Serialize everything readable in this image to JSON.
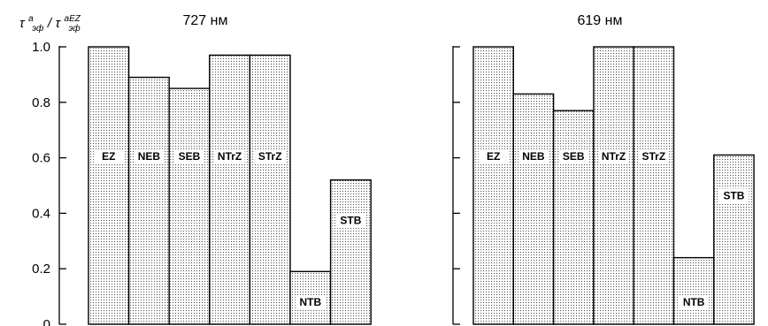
{
  "chart_data": [
    {
      "type": "bar",
      "title": "727 нм",
      "ylabel": {
        "base": "τ",
        "sup": "a",
        "sub": "эф",
        "sep": "/",
        "base2": "τ",
        "sup2": "aEZ",
        "sub2": "эф"
      },
      "categories": [
        "EZ",
        "NEB",
        "SEB",
        "NTrZ",
        "STrZ",
        "NTB",
        "STB"
      ],
      "values": [
        1.0,
        0.89,
        0.85,
        0.97,
        0.97,
        0.19,
        0.52
      ],
      "ylim": [
        0,
        1.0
      ],
      "yticks": [
        "0",
        "0.2",
        "0.4",
        "0.6",
        "0.8",
        "1.0"
      ],
      "grid": false,
      "legend": "none"
    },
    {
      "type": "bar",
      "title": "619 нм",
      "categories": [
        "EZ",
        "NEB",
        "SEB",
        "NTrZ",
        "STrZ",
        "NTB",
        "STB"
      ],
      "values": [
        1.0,
        0.83,
        0.77,
        1.0,
        1.0,
        0.24,
        0.61
      ],
      "ylim": [
        0,
        1.0
      ],
      "grid": false,
      "legend": "none"
    }
  ]
}
